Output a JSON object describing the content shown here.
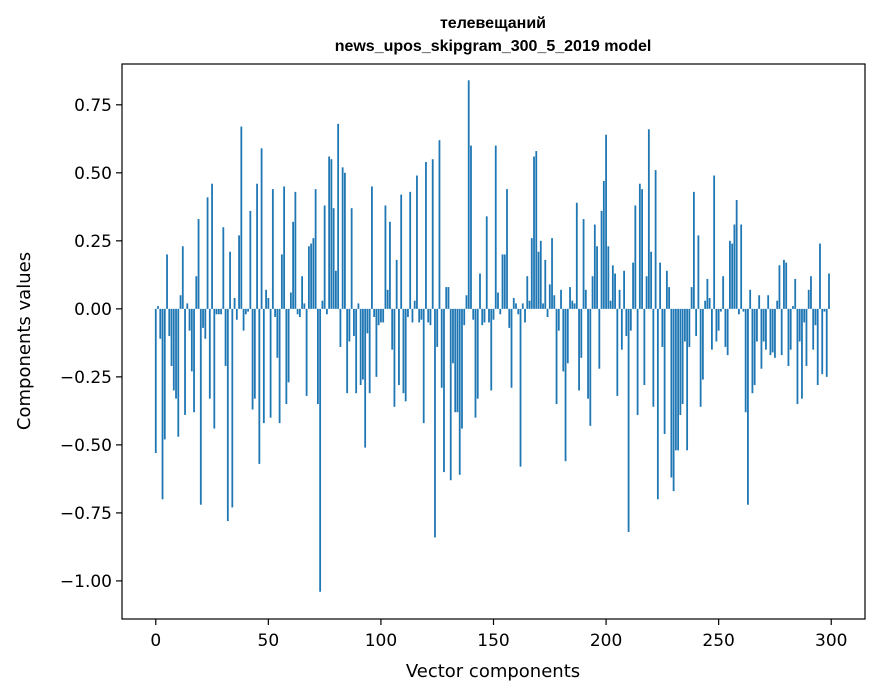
{
  "chart_data": {
    "type": "bar",
    "title": "телевещаний",
    "subtitle": "news_upos_skipgram_300_5_2019 model",
    "xlabel": "Vector components",
    "ylabel": "Components values",
    "xlim": [
      -15,
      315
    ],
    "ylim": [
      -1.14,
      0.9
    ],
    "xticks": [
      0,
      50,
      100,
      150,
      200,
      250,
      300
    ],
    "xtick_labels": [
      "0",
      "50",
      "100",
      "150",
      "200",
      "250",
      "300"
    ],
    "yticks": [
      0.75,
      0.5,
      0.25,
      0.0,
      -0.25,
      -0.5,
      -0.75,
      -1.0
    ],
    "ytick_labels": [
      "0.75",
      "0.50",
      "0.25",
      "0.00",
      "−0.25",
      "−0.50",
      "−0.75",
      "−1.00"
    ],
    "bar_color": "#1f77b4",
    "values": [
      -0.53,
      0.01,
      -0.11,
      -0.7,
      -0.48,
      0.2,
      -0.1,
      -0.21,
      -0.3,
      -0.33,
      -0.47,
      0.05,
      0.23,
      -0.39,
      0.02,
      -0.08,
      -0.23,
      -0.38,
      0.12,
      0.33,
      -0.72,
      -0.07,
      -0.11,
      0.41,
      -0.33,
      0.46,
      -0.44,
      -0.02,
      -0.02,
      -0.02,
      0.3,
      -0.21,
      -0.78,
      0.21,
      -0.73,
      0.04,
      -0.04,
      0.27,
      0.67,
      -0.08,
      -0.02,
      -0.01,
      0.36,
      -0.37,
      -0.33,
      0.46,
      -0.57,
      0.59,
      -0.42,
      0.07,
      0.04,
      -0.4,
      0.44,
      -0.03,
      -0.18,
      -0.42,
      0.2,
      0.45,
      -0.35,
      -0.27,
      0.06,
      0.32,
      0.43,
      -0.02,
      -0.03,
      0.12,
      0.02,
      -0.32,
      0.23,
      0.24,
      0.26,
      0.44,
      -0.35,
      -1.04,
      0.03,
      0.38,
      -0.02,
      0.56,
      0.55,
      0.37,
      0.14,
      0.68,
      -0.14,
      0.52,
      0.5,
      -0.31,
      -0.12,
      0.37,
      -0.1,
      -0.31,
      0.02,
      -0.28,
      -0.26,
      -0.51,
      -0.09,
      -0.31,
      0.45,
      -0.03,
      -0.25,
      -0.06,
      -0.05,
      -0.05,
      0.38,
      0.07,
      0.32,
      -0.15,
      -0.36,
      0.18,
      -0.28,
      0.42,
      -0.31,
      -0.34,
      -0.03,
      0.43,
      -0.05,
      0.03,
      0.49,
      -0.05,
      -0.04,
      -0.42,
      0.54,
      -0.05,
      -0.06,
      0.55,
      -0.84,
      -0.14,
      0.62,
      -0.29,
      -0.6,
      0.08,
      0.08,
      -0.63,
      -0.2,
      -0.38,
      -0.38,
      -0.61,
      -0.44,
      -0.06,
      0.05,
      0.84,
      0.6,
      -0.04,
      -0.4,
      -0.33,
      0.13,
      -0.06,
      -0.05,
      0.34,
      -0.05,
      -0.3,
      -0.04,
      0.6,
      0.06,
      -0.02,
      0.2,
      0.2,
      0.44,
      -0.07,
      -0.29,
      0.04,
      0.02,
      -0.02,
      -0.58,
      0.02,
      -0.05,
      0.12,
      0.03,
      0.26,
      0.56,
      0.58,
      0.21,
      0.25,
      0.02,
      0.18,
      -0.03,
      0.09,
      0.26,
      0.05,
      -0.35,
      -0.08,
      0.07,
      -0.23,
      -0.56,
      -0.2,
      0.08,
      0.03,
      0.02,
      0.39,
      -0.3,
      -0.18,
      0.33,
      0.07,
      -0.33,
      -0.43,
      0.12,
      0.31,
      0.23,
      -0.22,
      0.36,
      0.47,
      0.64,
      0.23,
      0.03,
      0.16,
      0.13,
      -0.32,
      0.07,
      -0.15,
      0.14,
      -0.1,
      -0.82,
      -0.08,
      0.17,
      0.38,
      -0.39,
      0.46,
      0.44,
      -0.28,
      0.12,
      0.66,
      0.21,
      -0.36,
      0.51,
      -0.7,
      0.17,
      -0.14,
      -0.46,
      0.14,
      0.08,
      -0.62,
      -0.67,
      -0.52,
      -0.52,
      -0.39,
      -0.35,
      -0.12,
      -0.52,
      -0.14,
      0.08,
      0.43,
      -0.1,
      0.27,
      -0.36,
      -0.26,
      0.03,
      0.11,
      0.04,
      -0.15,
      0.49,
      -0.12,
      -0.08,
      -0.01,
      0.12,
      -0.14,
      -0.17,
      0.25,
      0.24,
      0.31,
      0.4,
      -0.02,
      0.31,
      -0.01,
      -0.38,
      -0.72,
      0.07,
      -0.31,
      -0.28,
      -0.12,
      0.05,
      -0.22,
      -0.12,
      -0.15,
      0.05,
      -0.17,
      -0.16,
      -0.18,
      0.03,
      0.16,
      -0.17,
      0.18,
      0.17,
      -0.21,
      -0.15,
      0.01,
      0.11,
      -0.35,
      -0.12,
      -0.33,
      -0.05,
      -0.21,
      0.07,
      0.12,
      -0.15,
      -0.06,
      -0.28,
      0.24,
      -0.24,
      -0.01,
      -0.25,
      0.13
    ]
  }
}
